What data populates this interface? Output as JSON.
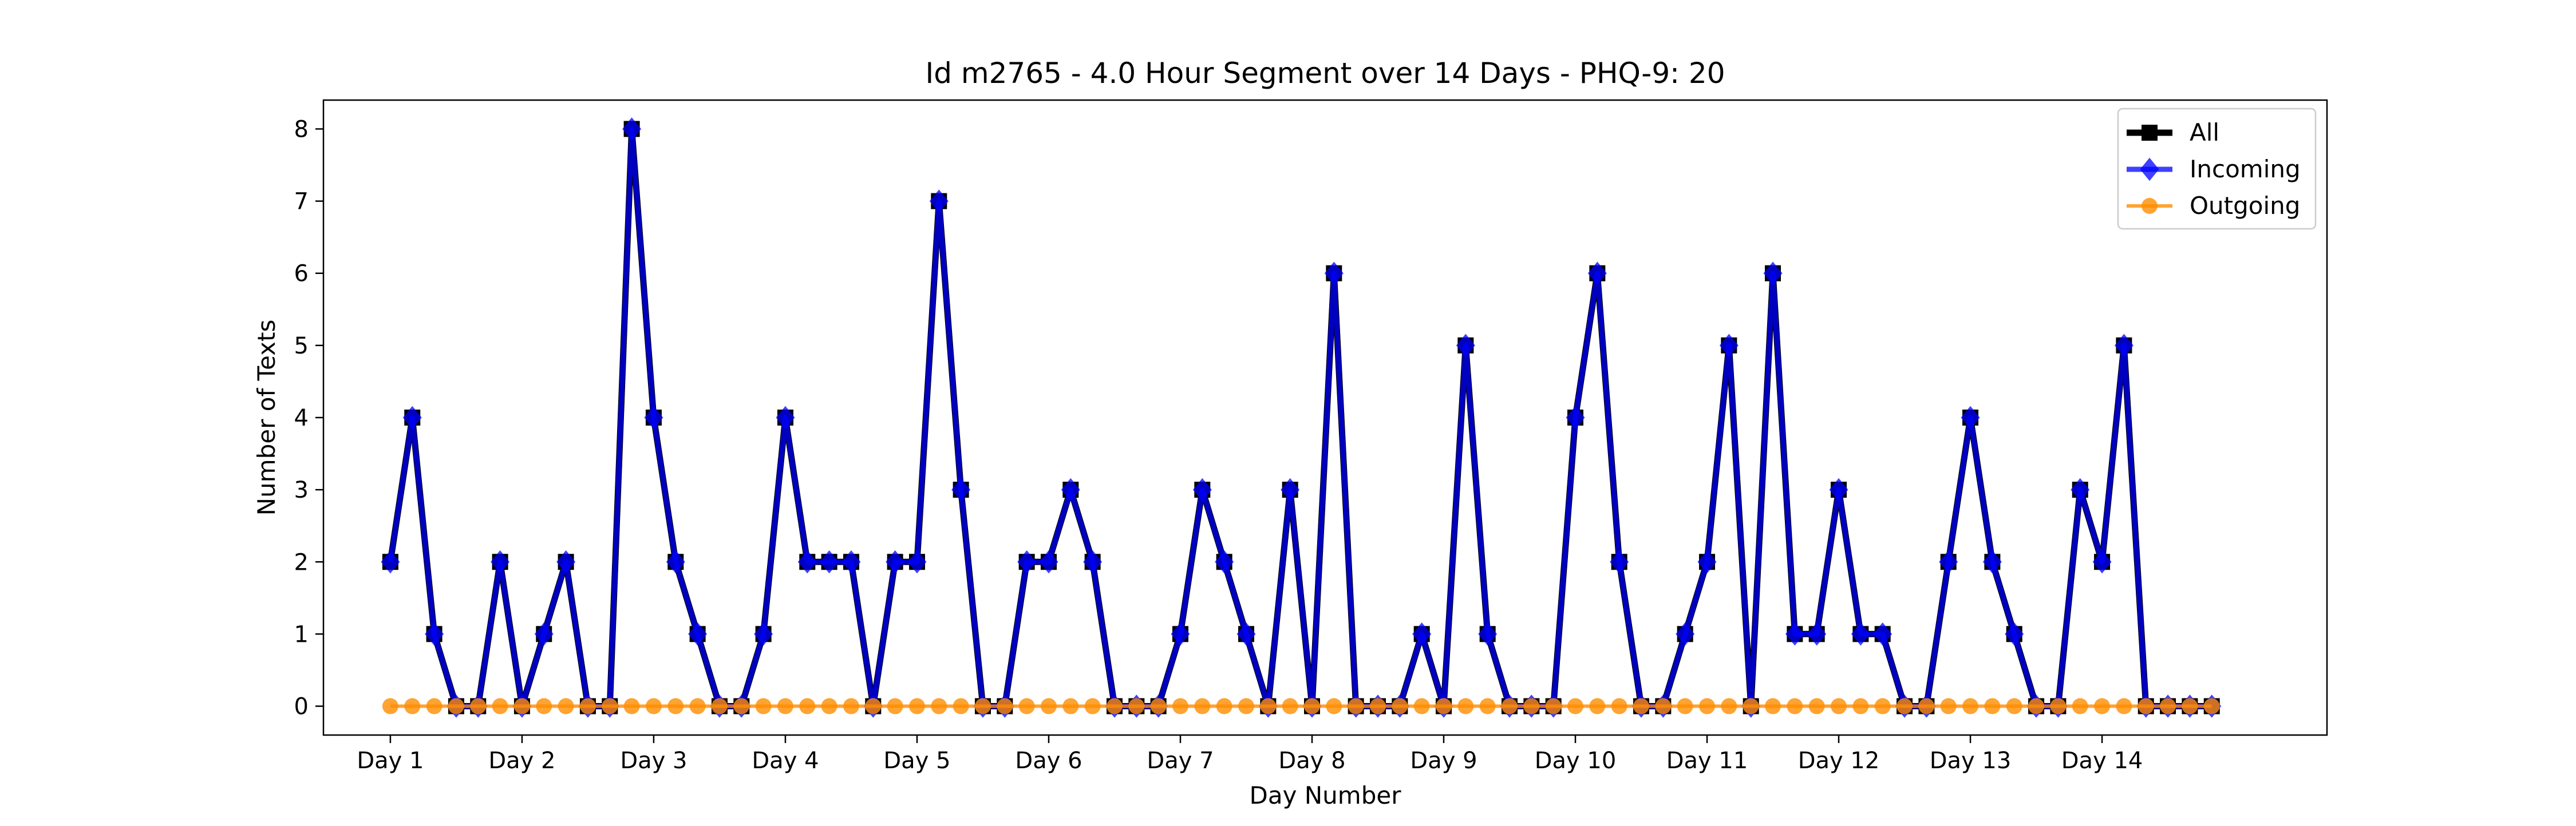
{
  "chart_data": {
    "type": "line",
    "title": "Id m2765 - 4.0 Hour Segment over 14 Days - PHQ-9: 20",
    "xlabel": "Day Number",
    "ylabel": "Number of Texts",
    "x_tick_labels": [
      "Day 1",
      "Day 2",
      "Day 3",
      "Day 4",
      "Day 5",
      "Day 6",
      "Day 7",
      "Day 8",
      "Day 9",
      "Day 10",
      "Day 11",
      "Day 12",
      "Day 13",
      "Day 14"
    ],
    "y_ticks": [
      0,
      1,
      2,
      3,
      4,
      5,
      6,
      7,
      8
    ],
    "ylim": [
      -0.4,
      8.4
    ],
    "segments_per_day": 6,
    "grid": false,
    "legend_position": "top-right",
    "series": [
      {
        "name": "All",
        "color": "#000000",
        "marker": "square",
        "values": [
          2,
          4,
          1,
          0,
          0,
          2,
          0,
          1,
          2,
          0,
          0,
          8,
          4,
          2,
          1,
          0,
          0,
          1,
          4,
          2,
          2,
          2,
          0,
          2,
          2,
          7,
          3,
          0,
          0,
          2,
          2,
          3,
          2,
          0,
          0,
          0,
          1,
          3,
          2,
          1,
          0,
          3,
          0,
          6,
          0,
          0,
          0,
          1,
          0,
          5,
          1,
          0,
          0,
          0,
          4,
          6,
          2,
          0,
          0,
          1,
          2,
          5,
          0,
          6,
          1,
          1,
          3,
          1,
          1,
          0,
          0,
          2,
          4,
          2,
          1,
          0,
          0,
          3,
          2,
          5,
          0,
          0,
          0,
          0
        ]
      },
      {
        "name": "Incoming",
        "color": "#0000ff",
        "marker": "diamond",
        "values": [
          2,
          4,
          1,
          0,
          0,
          2,
          0,
          1,
          2,
          0,
          0,
          8,
          4,
          2,
          1,
          0,
          0,
          1,
          4,
          2,
          2,
          2,
          0,
          2,
          2,
          7,
          3,
          0,
          0,
          2,
          2,
          3,
          2,
          0,
          0,
          0,
          1,
          3,
          2,
          1,
          0,
          3,
          0,
          6,
          0,
          0,
          0,
          1,
          0,
          5,
          1,
          0,
          0,
          0,
          4,
          6,
          2,
          0,
          0,
          1,
          2,
          5,
          0,
          6,
          1,
          1,
          3,
          1,
          1,
          0,
          0,
          2,
          4,
          2,
          1,
          0,
          0,
          3,
          2,
          5,
          0,
          0,
          0,
          0
        ]
      },
      {
        "name": "Outgoing",
        "color": "#ff8c00",
        "marker": "circle",
        "values": [
          0,
          0,
          0,
          0,
          0,
          0,
          0,
          0,
          0,
          0,
          0,
          0,
          0,
          0,
          0,
          0,
          0,
          0,
          0,
          0,
          0,
          0,
          0,
          0,
          0,
          0,
          0,
          0,
          0,
          0,
          0,
          0,
          0,
          0,
          0,
          0,
          0,
          0,
          0,
          0,
          0,
          0,
          0,
          0,
          0,
          0,
          0,
          0,
          0,
          0,
          0,
          0,
          0,
          0,
          0,
          0,
          0,
          0,
          0,
          0,
          0,
          0,
          0,
          0,
          0,
          0,
          0,
          0,
          0,
          0,
          0,
          0,
          0,
          0,
          0,
          0,
          0,
          0,
          0,
          0,
          0,
          0,
          0,
          0
        ]
      }
    ]
  }
}
